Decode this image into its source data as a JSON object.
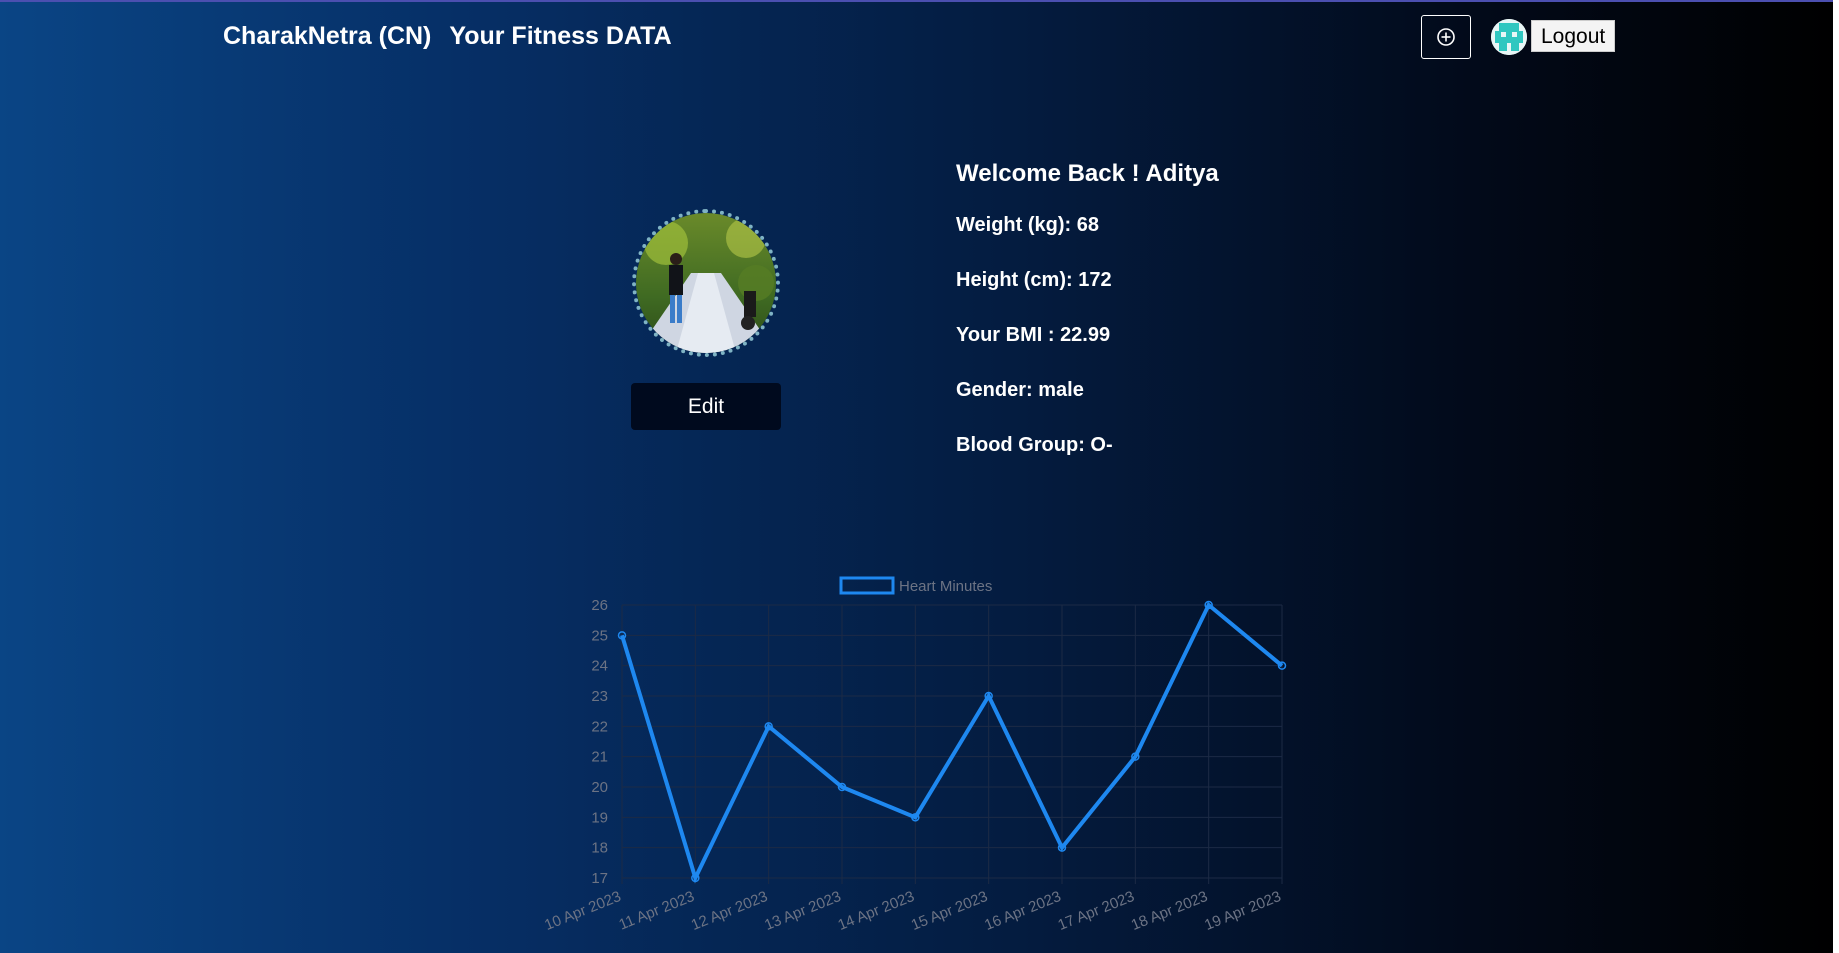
{
  "navbar": {
    "brand": "CharakNetra (CN)",
    "subtitle": "Your Fitness DATA",
    "add_icon": "plus-circle-icon",
    "logout_label": "Logout"
  },
  "profile": {
    "edit_label": "Edit",
    "welcome": "Welcome Back ! Aditya",
    "weight": "Weight (kg): 68",
    "height": "Height (cm): 172",
    "bmi": "Your BMI : 22.99",
    "gender": "Gender: male",
    "blood_group": "Blood Group: O-"
  },
  "chart_data": {
    "type": "line",
    "categories": [
      "10 Apr 2023",
      "11 Apr 2023",
      "12 Apr 2023",
      "13 Apr 2023",
      "14 Apr 2023",
      "15 Apr 2023",
      "16 Apr 2023",
      "17 Apr 2023",
      "18 Apr 2023",
      "19 Apr 2023"
    ],
    "series": [
      {
        "name": "Heart Minutes",
        "values": [
          25,
          17,
          22,
          20,
          19,
          23,
          18,
          21,
          26,
          24
        ]
      }
    ],
    "ylim": [
      17,
      26
    ],
    "yticks": [
      17,
      18,
      19,
      20,
      21,
      22,
      23,
      24,
      25,
      26
    ],
    "legend_position": "top-center",
    "grid": true,
    "line_color": "#1e88f0"
  }
}
